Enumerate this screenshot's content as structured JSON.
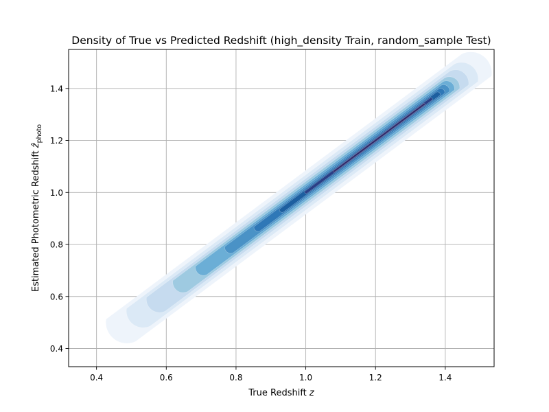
{
  "chart_data": {
    "type": "kde_density_contour",
    "title": "Density of True vs Predicted Redshift (high_density Train, random_sample Test)",
    "xlabel": "True Redshift z",
    "xlabel_parts": {
      "text": "True Redshift ",
      "symbol": "z"
    },
    "ylabel": "Estimated Photometric Redshift ẑ_photo",
    "ylabel_parts": {
      "text": "Estimated Photometric Redshift ",
      "symbol": "ẑ",
      "subscript": "photo"
    },
    "xlim": [
      0.32,
      1.54
    ],
    "ylim": [
      0.33,
      1.55
    ],
    "x_ticks": [
      0.4,
      0.6,
      0.8,
      1.0,
      1.2,
      1.4
    ],
    "x_tick_labels": [
      "0.4",
      "0.6",
      "0.8",
      "1.0",
      "1.2",
      "1.4"
    ],
    "y_ticks": [
      0.4,
      0.6,
      0.8,
      1.0,
      1.2,
      1.4
    ],
    "y_tick_labels": [
      "0.4",
      "0.6",
      "0.8",
      "1.0",
      "1.2",
      "1.4"
    ],
    "grid": true,
    "colormap": [
      "#eef4fb",
      "#dbe9f6",
      "#c6dbef",
      "#9ecae1",
      "#6baed6",
      "#4a92c6",
      "#2f78b7",
      "#1d5fa0",
      "#2a3f86",
      "#2e2a6a"
    ],
    "density_ridge": {
      "x": [
        0.47,
        0.6,
        0.7,
        0.8,
        0.9,
        1.0,
        1.1,
        1.2,
        1.3,
        1.4,
        1.49
      ],
      "y": [
        0.47,
        0.6,
        0.7,
        0.8,
        0.9,
        1.0,
        1.1,
        1.2,
        1.3,
        1.4,
        1.49
      ]
    },
    "contour_levels": [
      {
        "level": 1,
        "x_range": [
          0.47,
          1.49
        ],
        "half_width": 0.06
      },
      {
        "level": 2,
        "x_range": [
          0.52,
          1.46
        ],
        "half_width": 0.048
      },
      {
        "level": 3,
        "x_range": [
          0.57,
          1.44
        ],
        "half_width": 0.038
      },
      {
        "level": 4,
        "x_range": [
          0.64,
          1.42
        ],
        "half_width": 0.03
      },
      {
        "level": 5,
        "x_range": [
          0.7,
          1.41
        ],
        "half_width": 0.023
      },
      {
        "level": 6,
        "x_range": [
          0.78,
          1.4
        ],
        "half_width": 0.017
      },
      {
        "level": 7,
        "x_range": [
          0.86,
          1.39
        ],
        "half_width": 0.012
      },
      {
        "level": 8,
        "x_range": [
          0.93,
          1.38
        ],
        "half_width": 0.008
      },
      {
        "level": 9,
        "x_range": [
          1.0,
          1.36
        ],
        "half_width": 0.005
      },
      {
        "level": 10,
        "x_range": [
          1.08,
          1.34
        ],
        "half_width": 0.003
      }
    ]
  }
}
